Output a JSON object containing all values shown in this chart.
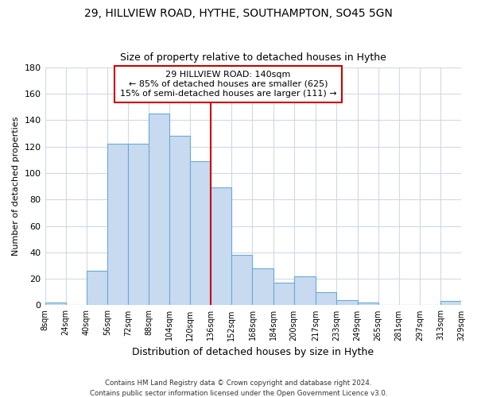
{
  "title": "29, HILLVIEW ROAD, HYTHE, SOUTHAMPTON, SO45 5GN",
  "subtitle": "Size of property relative to detached houses in Hythe",
  "xlabel": "Distribution of detached houses by size in Hythe",
  "ylabel": "Number of detached properties",
  "bar_color": "#c8daf0",
  "bar_edge_color": "#6aaad4",
  "background_color": "#ffffff",
  "grid_color": "#d0d8e8",
  "bin_edges": [
    8,
    24,
    40,
    56,
    72,
    88,
    104,
    120,
    136,
    152,
    168,
    184,
    200,
    217,
    233,
    249,
    265,
    281,
    297,
    313,
    329
  ],
  "bin_labels": [
    "8sqm",
    "24sqm",
    "40sqm",
    "56sqm",
    "72sqm",
    "88sqm",
    "104sqm",
    "120sqm",
    "136sqm",
    "152sqm",
    "168sqm",
    "184sqm",
    "200sqm",
    "217sqm",
    "233sqm",
    "249sqm",
    "265sqm",
    "281sqm",
    "297sqm",
    "313sqm",
    "329sqm"
  ],
  "bar_heights": [
    2,
    0,
    26,
    122,
    122,
    145,
    128,
    109,
    89,
    38,
    28,
    17,
    22,
    10,
    4,
    2,
    0,
    0,
    0,
    3
  ],
  "vline_x": 136,
  "vline_color": "#cc0000",
  "annotation_line1": "29 HILLVIEW ROAD: 140sqm",
  "annotation_line2": "← 85% of detached houses are smaller (625)",
  "annotation_line3": "15% of semi-detached houses are larger (111) →",
  "annotation_box_color": "#ffffff",
  "annotation_box_edge_color": "#cc0000",
  "ylim": [
    0,
    180
  ],
  "yticks": [
    0,
    20,
    40,
    60,
    80,
    100,
    120,
    140,
    160,
    180
  ],
  "footer_text": "Contains HM Land Registry data © Crown copyright and database right 2024.\nContains public sector information licensed under the Open Government Licence v3.0.",
  "figsize": [
    6.0,
    5.0
  ],
  "dpi": 100
}
